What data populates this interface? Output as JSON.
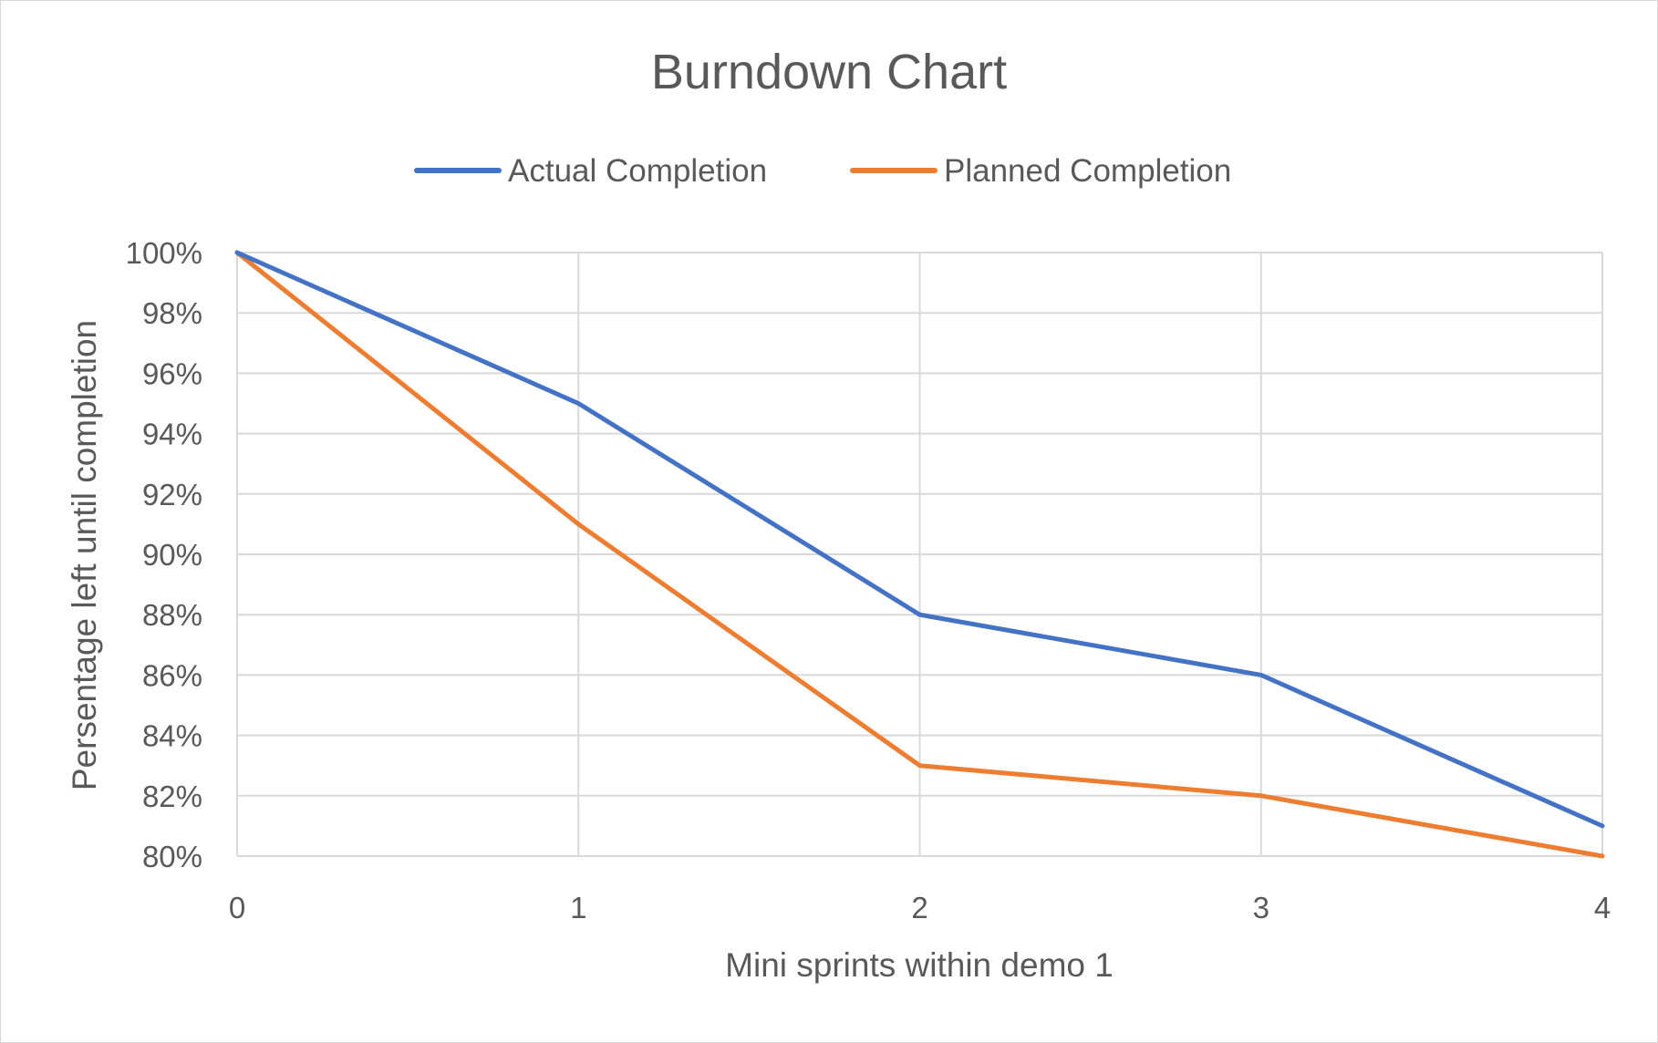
{
  "chart_data": {
    "type": "line",
    "title": "Burndown Chart",
    "xlabel": "Mini sprints within demo 1",
    "ylabel": "Persentage left until completion",
    "x": [
      0,
      1,
      2,
      3,
      4
    ],
    "xlim": [
      0,
      4
    ],
    "ylim": [
      80,
      100
    ],
    "y_tick_step": 2,
    "y_tick_suffix": "%",
    "grid": true,
    "legend_position": "top",
    "series": [
      {
        "name": "Actual Completion",
        "color": "#4472c4",
        "values": [
          100,
          95,
          88,
          86,
          81
        ]
      },
      {
        "name": "Planned Completion",
        "color": "#ed7d31",
        "values": [
          100,
          91,
          83,
          82,
          80
        ]
      }
    ]
  }
}
